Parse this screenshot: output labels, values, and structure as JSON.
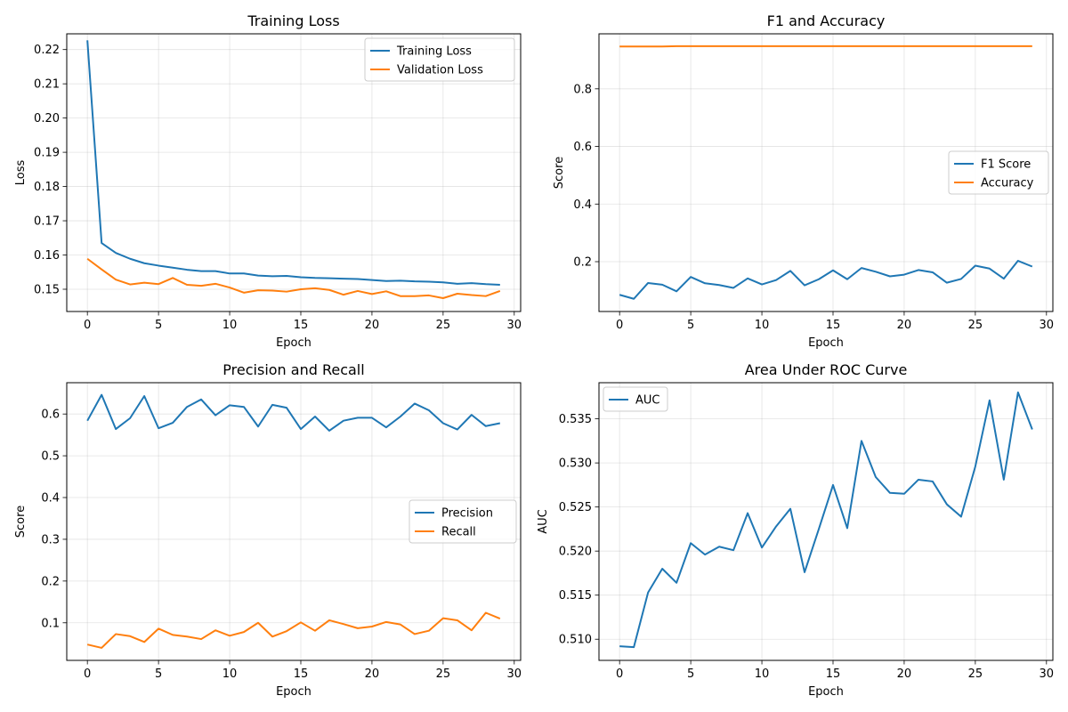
{
  "chart_data": [
    {
      "type": "line",
      "title": "Training Loss",
      "xlabel": "Epoch",
      "ylabel": "Loss",
      "xlim": [
        -1.45,
        30.45
      ],
      "ylim": [
        0.1435,
        0.2246
      ],
      "xticks": [
        0,
        5,
        10,
        15,
        20,
        25,
        30
      ],
      "yticks": [
        0.15,
        0.16,
        0.17,
        0.18,
        0.19,
        0.2,
        0.21,
        0.22
      ],
      "ytick_decimals": 2,
      "grid": true,
      "legend": "upper right",
      "x": [
        0,
        1,
        2,
        3,
        4,
        5,
        6,
        7,
        8,
        9,
        10,
        11,
        12,
        13,
        14,
        15,
        16,
        17,
        18,
        19,
        20,
        21,
        22,
        23,
        24,
        25,
        26,
        27,
        28,
        29
      ],
      "series": [
        {
          "name": "Training Loss",
          "color": "#1f77b4",
          "values": [
            0.2227,
            0.1635,
            0.1606,
            0.1589,
            0.1576,
            0.1569,
            0.1563,
            0.1557,
            0.1553,
            0.1553,
            0.1546,
            0.1546,
            0.154,
            0.1538,
            0.1539,
            0.1535,
            0.1533,
            0.1532,
            0.1531,
            0.153,
            0.1527,
            0.1524,
            0.1525,
            0.1523,
            0.1522,
            0.152,
            0.1516,
            0.1518,
            0.1515,
            0.1513
          ]
        },
        {
          "name": "Validation Loss",
          "color": "#ff7f0e",
          "values": [
            0.1589,
            0.1558,
            0.1528,
            0.1514,
            0.1519,
            0.1515,
            0.1533,
            0.1513,
            0.151,
            0.1516,
            0.1505,
            0.149,
            0.1497,
            0.1496,
            0.1493,
            0.15,
            0.1503,
            0.1498,
            0.1484,
            0.1495,
            0.1486,
            0.1494,
            0.148,
            0.148,
            0.1482,
            0.1474,
            0.1487,
            0.1483,
            0.148,
            0.1495
          ]
        }
      ]
    },
    {
      "type": "line",
      "title": "F1 and Accuracy",
      "xlabel": "Epoch",
      "ylabel": "Score",
      "xlim": [
        -1.45,
        30.45
      ],
      "ylim": [
        0.027,
        0.991
      ],
      "xticks": [
        0,
        5,
        10,
        15,
        20,
        25,
        30
      ],
      "yticks": [
        0.2,
        0.4,
        0.6,
        0.8
      ],
      "ytick_decimals": 1,
      "grid": true,
      "legend": "center right",
      "x": [
        0,
        1,
        2,
        3,
        4,
        5,
        6,
        7,
        8,
        9,
        10,
        11,
        12,
        13,
        14,
        15,
        16,
        17,
        18,
        19,
        20,
        21,
        22,
        23,
        24,
        25,
        26,
        27,
        28,
        29
      ],
      "series": [
        {
          "name": "F1 Score",
          "color": "#1f77b4",
          "values": [
            0.085,
            0.071,
            0.126,
            0.12,
            0.097,
            0.147,
            0.125,
            0.119,
            0.109,
            0.142,
            0.121,
            0.136,
            0.168,
            0.118,
            0.139,
            0.17,
            0.139,
            0.178,
            0.165,
            0.149,
            0.155,
            0.171,
            0.163,
            0.127,
            0.14,
            0.186,
            0.176,
            0.141,
            0.203,
            0.183
          ]
        },
        {
          "name": "Accuracy",
          "color": "#ff7f0e",
          "values": [
            0.947,
            0.947,
            0.947,
            0.947,
            0.948,
            0.948,
            0.948,
            0.948,
            0.948,
            0.948,
            0.948,
            0.948,
            0.948,
            0.948,
            0.948,
            0.948,
            0.948,
            0.948,
            0.948,
            0.948,
            0.948,
            0.948,
            0.948,
            0.948,
            0.948,
            0.948,
            0.948,
            0.948,
            0.948,
            0.948
          ]
        }
      ]
    },
    {
      "type": "line",
      "title": "Precision and Recall",
      "xlabel": "Epoch",
      "ylabel": "Score",
      "xlim": [
        -1.45,
        30.45
      ],
      "ylim": [
        0.01,
        0.675
      ],
      "xticks": [
        0,
        5,
        10,
        15,
        20,
        25,
        30
      ],
      "yticks": [
        0.1,
        0.2,
        0.3,
        0.4,
        0.5,
        0.6
      ],
      "ytick_decimals": 1,
      "grid": true,
      "legend": "center right",
      "x": [
        0,
        1,
        2,
        3,
        4,
        5,
        6,
        7,
        8,
        9,
        10,
        11,
        12,
        13,
        14,
        15,
        16,
        17,
        18,
        19,
        20,
        21,
        22,
        23,
        24,
        25,
        26,
        27,
        28,
        29
      ],
      "series": [
        {
          "name": "Precision",
          "color": "#1f77b4",
          "values": [
            0.584,
            0.646,
            0.564,
            0.59,
            0.643,
            0.566,
            0.579,
            0.617,
            0.635,
            0.597,
            0.621,
            0.617,
            0.57,
            0.622,
            0.615,
            0.564,
            0.594,
            0.56,
            0.584,
            0.591,
            0.591,
            0.568,
            0.594,
            0.625,
            0.609,
            0.578,
            0.563,
            0.598,
            0.571,
            0.578
          ]
        },
        {
          "name": "Recall",
          "color": "#ff7f0e",
          "values": [
            0.048,
            0.04,
            0.073,
            0.068,
            0.054,
            0.086,
            0.071,
            0.067,
            0.061,
            0.082,
            0.069,
            0.078,
            0.1,
            0.067,
            0.08,
            0.101,
            0.081,
            0.106,
            0.097,
            0.087,
            0.091,
            0.102,
            0.096,
            0.073,
            0.081,
            0.111,
            0.106,
            0.082,
            0.124,
            0.11
          ]
        }
      ]
    },
    {
      "type": "line",
      "title": "Area Under ROC Curve",
      "xlabel": "Epoch",
      "ylabel": "AUC",
      "xlim": [
        -1.45,
        30.45
      ],
      "ylim": [
        0.5076,
        0.5391
      ],
      "xticks": [
        0,
        5,
        10,
        15,
        20,
        25,
        30
      ],
      "yticks": [
        0.51,
        0.515,
        0.52,
        0.525,
        0.53,
        0.535
      ],
      "ytick_decimals": 3,
      "grid": true,
      "legend": "upper left",
      "x": [
        0,
        1,
        2,
        3,
        4,
        5,
        6,
        7,
        8,
        9,
        10,
        11,
        12,
        13,
        14,
        15,
        16,
        17,
        18,
        19,
        20,
        21,
        22,
        23,
        24,
        25,
        26,
        27,
        28,
        29
      ],
      "series": [
        {
          "name": "AUC",
          "color": "#1f77b4",
          "values": [
            0.5092,
            0.5091,
            0.5153,
            0.518,
            0.5164,
            0.5209,
            0.5196,
            0.5205,
            0.5201,
            0.5243,
            0.5204,
            0.5228,
            0.5248,
            0.5176,
            0.5225,
            0.5275,
            0.5226,
            0.5325,
            0.5284,
            0.5266,
            0.5265,
            0.5281,
            0.5279,
            0.5253,
            0.5239,
            0.5296,
            0.5371,
            0.5281,
            0.538,
            0.5338
          ]
        }
      ]
    }
  ]
}
